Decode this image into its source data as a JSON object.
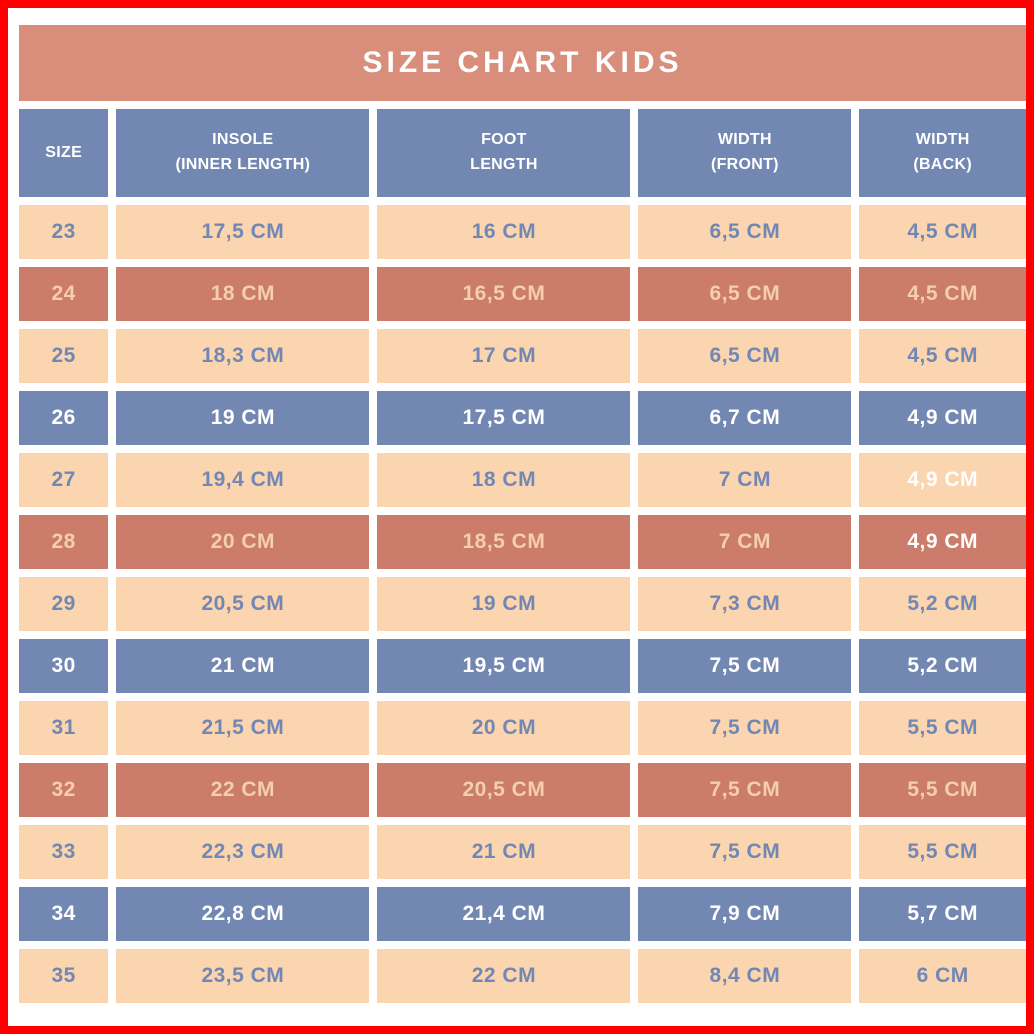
{
  "title": "SIZE CHART KIDS",
  "colors": {
    "frame_red": "#ff0000",
    "banner_salmon": "#d98d7b",
    "row_peach": "#fad5af",
    "row_salmon": "#cc7c6a",
    "row_blue": "#7387b3",
    "text_blue": "#7287b4",
    "text_peach": "#f4d0aa",
    "text_white": "#ffffff"
  },
  "table": {
    "columns": [
      {
        "key": "size",
        "label": "SIZE"
      },
      {
        "key": "insole",
        "label": "INSOLE\n(INNER LENGTH)"
      },
      {
        "key": "foot",
        "label": "FOOT\nLENGTH"
      },
      {
        "key": "width_front",
        "label": "WIDTH\n(FRONT)"
      },
      {
        "key": "width_back",
        "label": "WIDTH\n(BACK)"
      }
    ],
    "rows": [
      {
        "size": "23",
        "theme": "peach",
        "insole": "17,5 CM",
        "foot": "16 CM",
        "width_front": "6,5 CM",
        "width_back": "4,5 CM",
        "white_text": []
      },
      {
        "size": "24",
        "theme": "salmon",
        "insole": "18 CM",
        "foot": "16,5 CM",
        "width_front": "6,5 CM",
        "width_back": "4,5 CM",
        "white_text": []
      },
      {
        "size": "25",
        "theme": "peach",
        "insole": "18,3 CM",
        "foot": "17 CM",
        "width_front": "6,5 CM",
        "width_back": "4,5 CM",
        "white_text": []
      },
      {
        "size": "26",
        "theme": "blue",
        "insole": "19 CM",
        "foot": "17,5 CM",
        "width_front": "6,7 CM",
        "width_back": "4,9 CM",
        "white_text": []
      },
      {
        "size": "27",
        "theme": "peach",
        "insole": "19,4 CM",
        "foot": "18 CM",
        "width_front": "7 CM",
        "width_back": "4,9 CM",
        "white_text": [
          "width_back"
        ]
      },
      {
        "size": "28",
        "theme": "salmon",
        "insole": "20 CM",
        "foot": "18,5 CM",
        "width_front": "7 CM",
        "width_back": "4,9 CM",
        "white_text": [
          "width_back"
        ]
      },
      {
        "size": "29",
        "theme": "peach",
        "insole": "20,5 CM",
        "foot": "19 CM",
        "width_front": "7,3 CM",
        "width_back": "5,2 CM",
        "white_text": []
      },
      {
        "size": "30",
        "theme": "blue",
        "insole": "21 CM",
        "foot": "19,5 CM",
        "width_front": "7,5 CM",
        "width_back": "5,2 CM",
        "white_text": []
      },
      {
        "size": "31",
        "theme": "peach",
        "insole": "21,5 CM",
        "foot": "20 CM",
        "width_front": "7,5 CM",
        "width_back": "5,5 CM",
        "white_text": []
      },
      {
        "size": "32",
        "theme": "salmon",
        "insole": "22 CM",
        "foot": "20,5 CM",
        "width_front": "7,5 CM",
        "width_back": "5,5 CM",
        "white_text": []
      },
      {
        "size": "33",
        "theme": "peach",
        "insole": "22,3 CM",
        "foot": "21 CM",
        "width_front": "7,5 CM",
        "width_back": "5,5 CM",
        "white_text": []
      },
      {
        "size": "34",
        "theme": "blue",
        "insole": "22,8 CM",
        "foot": "21,4 CM",
        "width_front": "7,9 CM",
        "width_back": "5,7 CM",
        "white_text": []
      },
      {
        "size": "35",
        "theme": "peach",
        "insole": "23,5 CM",
        "foot": "22 CM",
        "width_front": "8,4 CM",
        "width_back": "6 CM",
        "white_text": []
      }
    ]
  },
  "chart_data": {
    "type": "table",
    "title": "SIZE CHART KIDS",
    "columns": [
      "SIZE",
      "INSOLE (INNER LENGTH)",
      "FOOT LENGTH",
      "WIDTH (FRONT)",
      "WIDTH (BACK)"
    ],
    "rows": [
      [
        "23",
        "17,5 CM",
        "16 CM",
        "6,5 CM",
        "4,5 CM"
      ],
      [
        "24",
        "18 CM",
        "16,5 CM",
        "6,5 CM",
        "4,5 CM"
      ],
      [
        "25",
        "18,3 CM",
        "17 CM",
        "6,5 CM",
        "4,5 CM"
      ],
      [
        "26",
        "19 CM",
        "17,5 CM",
        "6,7 CM",
        "4,9 CM"
      ],
      [
        "27",
        "19,4 CM",
        "18 CM",
        "7 CM",
        "4,9 CM"
      ],
      [
        "28",
        "20 CM",
        "18,5 CM",
        "7 CM",
        "4,9 CM"
      ],
      [
        "29",
        "20,5 CM",
        "19 CM",
        "7,3 CM",
        "5,2 CM"
      ],
      [
        "30",
        "21 CM",
        "19,5 CM",
        "7,5 CM",
        "5,2 CM"
      ],
      [
        "31",
        "21,5 CM",
        "20 CM",
        "7,5 CM",
        "5,5 CM"
      ],
      [
        "32",
        "22 CM",
        "20,5 CM",
        "7,5 CM",
        "5,5 CM"
      ],
      [
        "33",
        "22,3 CM",
        "21 CM",
        "7,5 CM",
        "5,5 CM"
      ],
      [
        "34",
        "22,8 CM",
        "21,4 CM",
        "7,9 CM",
        "5,7 CM"
      ],
      [
        "35",
        "23,5 CM",
        "22 CM",
        "8,4 CM",
        "6 CM"
      ]
    ]
  }
}
